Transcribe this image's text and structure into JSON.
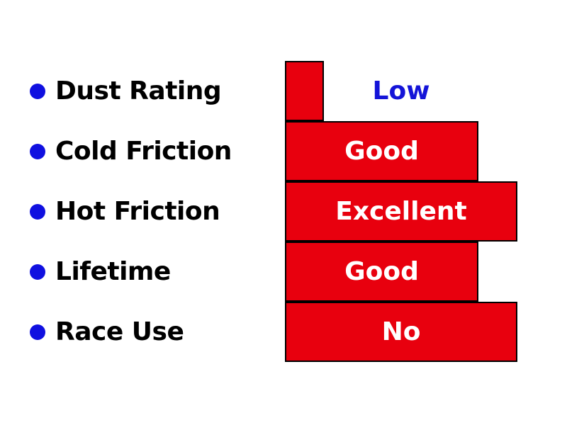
{
  "chart_data": {
    "type": "bar",
    "orientation": "horizontal",
    "categories": [
      "Dust Rating",
      "Cold Friction",
      "Hot Friction",
      "Lifetime",
      "Race Use"
    ],
    "values": [
      1,
      5,
      6,
      5,
      6
    ],
    "value_labels": [
      "Low",
      "Good",
      "Excellent",
      "Good",
      "No"
    ],
    "xlim": [
      0,
      6
    ],
    "grid": false,
    "legend": "none",
    "colors": {
      "bar": "#e8000e",
      "bar_outline": "#000000",
      "bullet": "#1010e0",
      "label_on_bar": "#ffffff",
      "label_off_bar": "#1414d8"
    }
  }
}
